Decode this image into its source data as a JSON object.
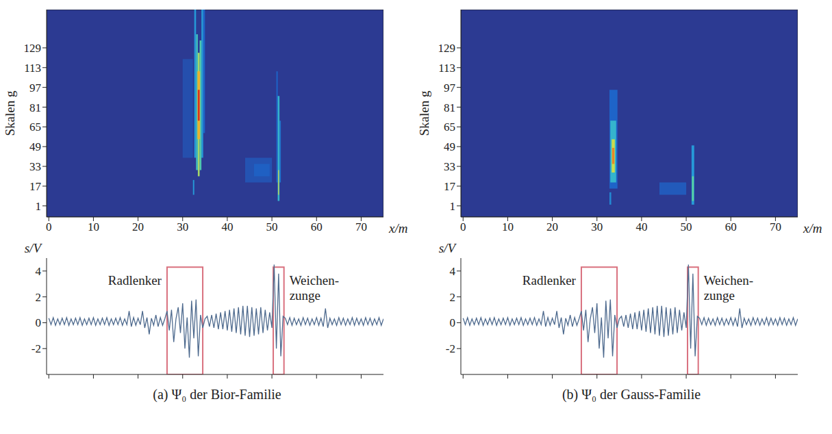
{
  "chart_data": [
    {
      "type": "heatmap",
      "xlabel": "x/m",
      "ylabel": "Skalen g",
      "xlim": [
        -0.5,
        75
      ],
      "xticks": [
        0,
        10,
        20,
        30,
        40,
        50,
        60,
        70
      ],
      "ylim": [
        -8,
        160
      ],
      "yticks": [
        1,
        17,
        33,
        49,
        65,
        81,
        97,
        113,
        129
      ],
      "color_range": [
        0,
        1
      ],
      "cells": [
        {
          "x": [
            30.0,
            32.3
          ],
          "scale": [
            40,
            120
          ],
          "value": 0.1
        },
        {
          "x": [
            44.0,
            50.0
          ],
          "scale": [
            20,
            40
          ],
          "value": 0.12
        },
        {
          "x": [
            46.0,
            49.5
          ],
          "scale": [
            25,
            35
          ],
          "value": 0.18
        },
        {
          "x": [
            34.6,
            35.0
          ],
          "scale": [
            60,
            160
          ],
          "value": 0.2
        },
        {
          "x": [
            32.6,
            33.0
          ],
          "scale": [
            40,
            160
          ],
          "value": 0.35
        },
        {
          "x": [
            34.2,
            34.6
          ],
          "scale": [
            40,
            160
          ],
          "value": 0.35
        },
        {
          "x": [
            33.0,
            33.4
          ],
          "scale": [
            30,
            140
          ],
          "value": 0.5
        },
        {
          "x": [
            33.8,
            34.2
          ],
          "scale": [
            30,
            135
          ],
          "value": 0.55
        },
        {
          "x": [
            33.4,
            33.8
          ],
          "scale": [
            25,
            125
          ],
          "value": 0.7
        },
        {
          "x": [
            33.3,
            33.9
          ],
          "scale": [
            55,
            110
          ],
          "value": 0.85
        },
        {
          "x": [
            33.4,
            33.8
          ],
          "scale": [
            70,
            95
          ],
          "value": 1.0
        },
        {
          "x": [
            32.3,
            32.6
          ],
          "scale": [
            10,
            22
          ],
          "value": 0.35
        },
        {
          "x": [
            51.0,
            51.3
          ],
          "scale": [
            20,
            110
          ],
          "value": 0.2
        },
        {
          "x": [
            51.7,
            52.0
          ],
          "scale": [
            20,
            70
          ],
          "value": 0.25
        },
        {
          "x": [
            51.3,
            51.7
          ],
          "scale": [
            5,
            90
          ],
          "value": 0.45
        },
        {
          "x": [
            51.4,
            51.6
          ],
          "scale": [
            10,
            30
          ],
          "value": 0.75
        }
      ]
    },
    {
      "type": "line",
      "title": "(a) Ψ₀ der Bior-Familie",
      "ylabel": "s/V",
      "xlim": [
        -0.5,
        75
      ],
      "xticks": [
        0,
        10,
        20,
        30,
        40,
        50,
        60,
        70
      ],
      "ylim": [
        -4,
        5
      ],
      "yticks": [
        -2,
        0,
        2,
        4
      ],
      "tick_labels": "y",
      "color": "#4e6a8e",
      "annotations": [
        {
          "text": "Radlenker",
          "x": [
            26.5,
            34.5
          ],
          "y": [
            -4,
            4.3
          ],
          "color": "#d9707e"
        },
        {
          "text": "Weichen-\nzunge",
          "x": [
            50.3,
            52.7
          ],
          "y": [
            -4,
            4.3
          ],
          "color": "#d9707e"
        }
      ],
      "x": [
        0,
        0.5,
        1,
        1.5,
        2,
        2.5,
        3,
        3.5,
        4,
        4.5,
        5,
        5.5,
        6,
        6.5,
        7,
        7.5,
        8,
        8.5,
        9,
        9.5,
        10,
        10.5,
        11,
        11.5,
        12,
        12.5,
        13,
        13.5,
        14,
        14.5,
        15,
        15.5,
        16,
        16.5,
        17,
        17.5,
        18,
        18.5,
        19,
        19.5,
        20,
        20.5,
        21,
        21.5,
        22,
        22.5,
        23,
        23.5,
        24,
        24.5,
        25,
        25.5,
        26,
        26.5,
        27,
        27.5,
        28,
        28.5,
        29,
        29.5,
        30,
        30.5,
        31,
        31.5,
        32,
        32.5,
        33,
        33.5,
        34,
        34.5,
        35,
        35.5,
        36,
        36.5,
        37,
        37.5,
        38,
        38.5,
        39,
        39.5,
        40,
        40.5,
        41,
        41.5,
        42,
        42.5,
        43,
        43.5,
        44,
        44.5,
        45,
        45.5,
        46,
        46.5,
        47,
        47.5,
        48,
        48.5,
        49,
        49.5,
        50,
        50.5,
        51,
        51.5,
        52,
        52.5,
        53,
        53.5,
        54,
        54.5,
        55,
        55.5,
        56,
        56.5,
        57,
        57.5,
        58,
        58.5,
        59,
        59.5,
        60,
        60.5,
        61,
        61.5,
        62,
        62.5,
        63,
        63.5,
        64,
        64.5,
        65,
        65.5,
        66,
        66.5,
        67,
        67.5,
        68,
        68.5,
        69,
        69.5,
        70,
        70.5,
        71,
        71.5,
        72,
        72.5,
        73,
        73.5,
        74,
        74.5,
        75
      ],
      "values": [
        0.35,
        -0.15,
        0.4,
        -0.2,
        0.3,
        -0.15,
        0.35,
        -0.15,
        0.4,
        -0.2,
        0.3,
        -0.15,
        0.35,
        -0.15,
        0.4,
        -0.2,
        0.3,
        -0.15,
        0.35,
        -0.15,
        0.4,
        -0.2,
        0.3,
        -0.15,
        0.35,
        -0.15,
        0.4,
        -0.2,
        0.3,
        -0.15,
        0.35,
        -0.15,
        0.4,
        -0.2,
        0.3,
        -0.15,
        0.9,
        -0.3,
        0.4,
        -0.2,
        0.35,
        -0.15,
        0.9,
        -0.4,
        0.4,
        -0.9,
        0.35,
        -0.2,
        0.6,
        -0.3,
        0.4,
        -0.2,
        0.3,
        0.9,
        -0.6,
        1.0,
        -1.5,
        0.3,
        1.2,
        -0.8,
        1.5,
        -2.0,
        0.4,
        -2.7,
        1.7,
        -1.2,
        1.8,
        -2.6,
        0.6,
        -0.4,
        0.3,
        0.5,
        -0.3,
        0.6,
        -0.4,
        0.7,
        -0.5,
        0.8,
        -0.5,
        0.9,
        -0.6,
        1.0,
        -0.7,
        1.1,
        -0.8,
        1.2,
        -0.9,
        1.3,
        -1.0,
        1.3,
        -1.1,
        1.2,
        -1.0,
        1.1,
        -0.9,
        1.2,
        -0.8,
        1.0,
        -0.6,
        0.8,
        -0.4,
        4.5,
        -2.0,
        3.8,
        -2.6,
        0.5,
        0.35,
        -0.15,
        0.4,
        -0.2,
        0.35,
        -0.15,
        0.3,
        -0.2,
        0.4,
        -0.15,
        0.35,
        -0.2,
        0.3,
        -0.15,
        0.4,
        -0.2,
        0.35,
        -0.3,
        1.1,
        -0.4,
        0.35,
        -0.15,
        0.3,
        -0.2,
        0.4,
        -0.15,
        0.35,
        -0.2,
        0.3,
        -0.15,
        0.4,
        -0.2,
        0.35,
        -0.15,
        0.3,
        -0.2,
        0.4,
        -0.15,
        0.35,
        -0.2,
        0.3,
        -0.15,
        0.4,
        -0.2,
        0.3
      ]
    },
    {
      "type": "heatmap",
      "xlabel": "x/m",
      "ylabel": "Skalen g",
      "xlim": [
        -0.5,
        75
      ],
      "xticks": [
        0,
        10,
        20,
        30,
        40,
        50,
        60,
        70
      ],
      "ylim": [
        -8,
        160
      ],
      "yticks": [
        1,
        17,
        33,
        49,
        65,
        81,
        97,
        113,
        129
      ],
      "color_range": [
        0,
        1
      ],
      "cells": [
        {
          "x": [
            44.0,
            50.0
          ],
          "scale": [
            10,
            20
          ],
          "value": 0.15
        },
        {
          "x": [
            32.8,
            34.6
          ],
          "scale": [
            15,
            95
          ],
          "value": 0.2
        },
        {
          "x": [
            33.0,
            34.3
          ],
          "scale": [
            20,
            70
          ],
          "value": 0.45
        },
        {
          "x": [
            33.3,
            34.0
          ],
          "scale": [
            28,
            55
          ],
          "value": 0.75
        },
        {
          "x": [
            33.4,
            33.9
          ],
          "scale": [
            35,
            48
          ],
          "value": 0.9
        },
        {
          "x": [
            32.8,
            33.2
          ],
          "scale": [
            2,
            12
          ],
          "value": 0.3
        },
        {
          "x": [
            51.2,
            51.8
          ],
          "scale": [
            2,
            50
          ],
          "value": 0.35
        },
        {
          "x": [
            51.3,
            51.7
          ],
          "scale": [
            5,
            25
          ],
          "value": 0.6
        }
      ]
    },
    {
      "type": "line",
      "title": "(b) Ψ₀ der Gauss-Familie",
      "ylabel": "s/V",
      "xlim": [
        -0.5,
        75
      ],
      "xticks": [
        0,
        10,
        20,
        30,
        40,
        50,
        60,
        70
      ],
      "ylim": [
        -4,
        5
      ],
      "yticks": [
        -2,
        0,
        2,
        4
      ],
      "tick_labels": "y",
      "color": "#4e6a8e",
      "annotations": [
        {
          "text": "Radlenker",
          "x": [
            26.5,
            34.5
          ],
          "y": [
            -4,
            4.3
          ],
          "color": "#d9707e"
        },
        {
          "text": "Weichen-\nzunge",
          "x": [
            50.3,
            52.7
          ],
          "y": [
            -4,
            4.3
          ],
          "color": "#d9707e"
        }
      ],
      "x": [
        0,
        0.5,
        1,
        1.5,
        2,
        2.5,
        3,
        3.5,
        4,
        4.5,
        5,
        5.5,
        6,
        6.5,
        7,
        7.5,
        8,
        8.5,
        9,
        9.5,
        10,
        10.5,
        11,
        11.5,
        12,
        12.5,
        13,
        13.5,
        14,
        14.5,
        15,
        15.5,
        16,
        16.5,
        17,
        17.5,
        18,
        18.5,
        19,
        19.5,
        20,
        20.5,
        21,
        21.5,
        22,
        22.5,
        23,
        23.5,
        24,
        24.5,
        25,
        25.5,
        26,
        26.5,
        27,
        27.5,
        28,
        28.5,
        29,
        29.5,
        30,
        30.5,
        31,
        31.5,
        32,
        32.5,
        33,
        33.5,
        34,
        34.5,
        35,
        35.5,
        36,
        36.5,
        37,
        37.5,
        38,
        38.5,
        39,
        39.5,
        40,
        40.5,
        41,
        41.5,
        42,
        42.5,
        43,
        43.5,
        44,
        44.5,
        45,
        45.5,
        46,
        46.5,
        47,
        47.5,
        48,
        48.5,
        49,
        49.5,
        50,
        50.5,
        51,
        51.5,
        52,
        52.5,
        53,
        53.5,
        54,
        54.5,
        55,
        55.5,
        56,
        56.5,
        57,
        57.5,
        58,
        58.5,
        59,
        59.5,
        60,
        60.5,
        61,
        61.5,
        62,
        62.5,
        63,
        63.5,
        64,
        64.5,
        65,
        65.5,
        66,
        66.5,
        67,
        67.5,
        68,
        68.5,
        69,
        69.5,
        70,
        70.5,
        71,
        71.5,
        72,
        72.5,
        73,
        73.5,
        74,
        74.5,
        75
      ],
      "values": [
        0.35,
        -0.15,
        0.4,
        -0.2,
        0.3,
        -0.15,
        0.35,
        -0.15,
        0.4,
        -0.2,
        0.3,
        -0.15,
        0.35,
        -0.15,
        0.4,
        -0.2,
        0.3,
        -0.15,
        0.35,
        -0.15,
        0.4,
        -0.2,
        0.3,
        -0.15,
        0.35,
        -0.15,
        0.4,
        -0.2,
        0.3,
        -0.15,
        0.35,
        -0.15,
        0.4,
        -0.2,
        0.3,
        -0.15,
        0.9,
        -0.3,
        0.4,
        -0.2,
        0.35,
        -0.15,
        0.9,
        -0.4,
        0.4,
        -0.9,
        0.35,
        -0.2,
        0.6,
        -0.3,
        0.4,
        -0.2,
        0.3,
        0.9,
        -0.6,
        1.0,
        -1.5,
        0.3,
        1.2,
        -0.8,
        1.5,
        -2.0,
        0.4,
        -2.7,
        1.7,
        -1.2,
        1.8,
        -2.6,
        0.6,
        -0.4,
        0.3,
        0.5,
        -0.3,
        0.6,
        -0.4,
        0.7,
        -0.5,
        0.8,
        -0.5,
        0.9,
        -0.6,
        1.0,
        -0.7,
        1.1,
        -0.8,
        1.2,
        -0.9,
        1.3,
        -1.0,
        1.3,
        -1.1,
        1.2,
        -1.0,
        1.1,
        -0.9,
        1.2,
        -0.8,
        1.0,
        -0.6,
        0.8,
        -0.4,
        4.5,
        -2.0,
        3.8,
        -2.6,
        0.5,
        0.35,
        -0.15,
        0.4,
        -0.2,
        0.35,
        -0.15,
        0.3,
        -0.2,
        0.4,
        -0.15,
        0.35,
        -0.2,
        0.3,
        -0.15,
        0.4,
        -0.2,
        0.35,
        -0.3,
        1.1,
        -0.4,
        0.35,
        -0.15,
        0.3,
        -0.2,
        0.4,
        -0.15,
        0.35,
        -0.2,
        0.3,
        -0.15,
        0.4,
        -0.2,
        0.35,
        -0.15,
        0.3,
        -0.2,
        0.4,
        -0.15,
        0.35,
        -0.2,
        0.3,
        -0.15,
        0.4,
        -0.2,
        0.3
      ]
    }
  ]
}
